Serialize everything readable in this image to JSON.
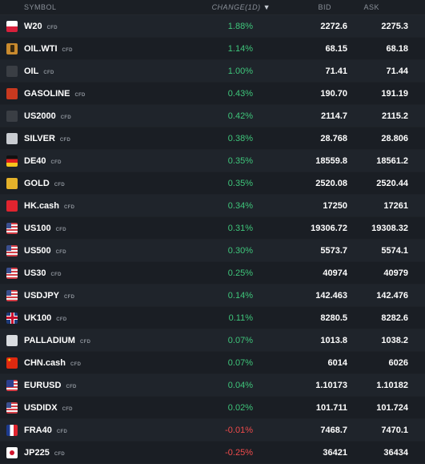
{
  "header": {
    "symbol": "SYMBOL",
    "change": "CHANGE(1D)",
    "sort_arrow": "▼",
    "bid": "BID",
    "ask": "ASK"
  },
  "colors": {
    "positive": "#3fc67b",
    "negative": "#f04b4b",
    "background": "#1b1f25"
  },
  "rows": [
    {
      "symbol": "W20",
      "tag": "CFD",
      "change": "1.88%",
      "bid": "2272.6",
      "ask": "2275.3",
      "icon": "poland-flag-icon",
      "icon_text": "",
      "dir": "pos"
    },
    {
      "symbol": "OIL.WTI",
      "tag": "CFD",
      "change": "1.14%",
      "bid": "68.15",
      "ask": "68.18",
      "icon": "oil-barrel-icon",
      "icon_text": "",
      "dir": "pos"
    },
    {
      "symbol": "OIL",
      "tag": "CFD",
      "change": "1.00%",
      "bid": "71.41",
      "ask": "71.44",
      "icon": "oil-icon",
      "icon_text": "",
      "dir": "pos"
    },
    {
      "symbol": "GASOLINE",
      "tag": "CFD",
      "change": "0.43%",
      "bid": "190.70",
      "ask": "191.19",
      "icon": "gasoline-icon",
      "icon_text": "",
      "dir": "pos"
    },
    {
      "symbol": "US2000",
      "tag": "CFD",
      "change": "0.42%",
      "bid": "2114.7",
      "ask": "2115.2",
      "icon": "us2000-icon",
      "icon_text": "",
      "dir": "pos"
    },
    {
      "symbol": "SILVER",
      "tag": "CFD",
      "change": "0.38%",
      "bid": "28.768",
      "ask": "28.806",
      "icon": "silver-icon",
      "icon_text": "",
      "dir": "pos"
    },
    {
      "symbol": "DE40",
      "tag": "CFD",
      "change": "0.35%",
      "bid": "18559.8",
      "ask": "18561.2",
      "icon": "germany-flag-icon",
      "icon_text": "",
      "dir": "pos"
    },
    {
      "symbol": "GOLD",
      "tag": "CFD",
      "change": "0.35%",
      "bid": "2520.08",
      "ask": "2520.44",
      "icon": "gold-icon",
      "icon_text": "",
      "dir": "pos"
    },
    {
      "symbol": "HK.cash",
      "tag": "CFD",
      "change": "0.34%",
      "bid": "17250",
      "ask": "17261",
      "icon": "hong-kong-flag-icon",
      "icon_text": "",
      "dir": "pos"
    },
    {
      "symbol": "US100",
      "tag": "CFD",
      "change": "0.31%",
      "bid": "19306.72",
      "ask": "19308.32",
      "icon": "us-flag-icon",
      "icon_text": "",
      "dir": "pos"
    },
    {
      "symbol": "US500",
      "tag": "CFD",
      "change": "0.30%",
      "bid": "5573.7",
      "ask": "5574.1",
      "icon": "us-flag-icon",
      "icon_text": "",
      "dir": "pos"
    },
    {
      "symbol": "US30",
      "tag": "CFD",
      "change": "0.25%",
      "bid": "40974",
      "ask": "40979",
      "icon": "us-flag-icon",
      "icon_text": "",
      "dir": "pos"
    },
    {
      "symbol": "USDJPY",
      "tag": "CFD",
      "change": "0.14%",
      "bid": "142.463",
      "ask": "142.476",
      "icon": "usd-jpy-flags-icon",
      "icon_text": "",
      "dir": "pos"
    },
    {
      "symbol": "UK100",
      "tag": "CFD",
      "change": "0.11%",
      "bid": "8280.5",
      "ask": "8282.6",
      "icon": "uk-flag-icon",
      "icon_text": "",
      "dir": "pos"
    },
    {
      "symbol": "PALLADIUM",
      "tag": "CFD",
      "change": "0.07%",
      "bid": "1013.8",
      "ask": "1038.2",
      "icon": "palladium-icon",
      "icon_text": "",
      "dir": "pos"
    },
    {
      "symbol": "CHN.cash",
      "tag": "CFD",
      "change": "0.07%",
      "bid": "6014",
      "ask": "6026",
      "icon": "china-flag-icon",
      "icon_text": "",
      "dir": "pos"
    },
    {
      "symbol": "EURUSD",
      "tag": "CFD",
      "change": "0.04%",
      "bid": "1.10173",
      "ask": "1.10182",
      "icon": "eur-usd-flags-icon",
      "icon_text": "",
      "dir": "pos"
    },
    {
      "symbol": "USDIDX",
      "tag": "CFD",
      "change": "0.02%",
      "bid": "101.711",
      "ask": "101.724",
      "icon": "usd-index-icon",
      "icon_text": "",
      "dir": "pos"
    },
    {
      "symbol": "FRA40",
      "tag": "CFD",
      "change": "-0.01%",
      "bid": "7468.7",
      "ask": "7470.1",
      "icon": "france-flag-icon",
      "icon_text": "",
      "dir": "neg"
    },
    {
      "symbol": "JP225",
      "tag": "CFD",
      "change": "-0.25%",
      "bid": "36421",
      "ask": "36434",
      "icon": "japan-flag-icon",
      "icon_text": "",
      "dir": "neg"
    }
  ]
}
